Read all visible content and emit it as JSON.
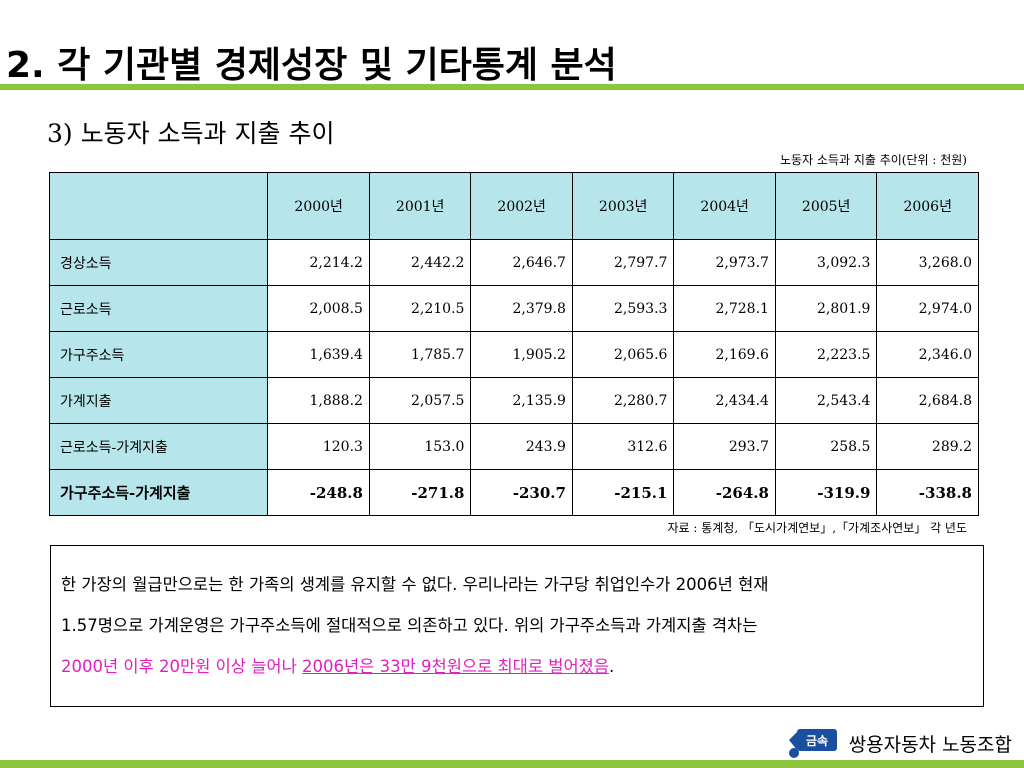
{
  "header": {
    "title": "2. 각 기관별 경제성장 및 기타통계 분석",
    "subtitle": "3) 노동자 소득과 지출 추이",
    "table_caption": "노동자 소득과 지출 추이(단위 : 천원)"
  },
  "table": {
    "columns": [
      "2000년",
      "2001년",
      "2002년",
      "2003년",
      "2004년",
      "2005년",
      "2006년"
    ],
    "rows": [
      {
        "label": "경상소득",
        "values": [
          "2,214.2",
          "2,442.2",
          "2,646.7",
          "2,797.7",
          "2,973.7",
          "3,092.3",
          "3,268.0"
        ]
      },
      {
        "label": "근로소득",
        "values": [
          "2,008.5",
          "2,210.5",
          "2,379.8",
          "2,593.3",
          "2,728.1",
          "2,801.9",
          "2,974.0"
        ]
      },
      {
        "label": "가구주소득",
        "values": [
          "1,639.4",
          "1,785.7",
          "1,905.2",
          "2,065.6",
          "2,169.6",
          "2,223.5",
          "2,346.0"
        ]
      },
      {
        "label": "가계지출",
        "values": [
          "1,888.2",
          "2,057.5",
          "2,135.9",
          "2,280.7",
          "2,434.4",
          "2,543.4",
          "2,684.8"
        ]
      },
      {
        "label": "근로소득-가계지출",
        "values": [
          "120.3",
          "153.0",
          "243.9",
          "312.6",
          "293.7",
          "258.5",
          "289.2"
        ]
      },
      {
        "label": "가구주소득-가계지출",
        "values": [
          "-248.8",
          "-271.8",
          "-230.7",
          "-215.1",
          "-264.8",
          "-319.9",
          "-338.8"
        ]
      }
    ],
    "source": "자료 : 통계청, 「도시가계연보」,「가계조사연보」 각 년도"
  },
  "note": {
    "line1": "한 가장의 월급만으로는 한 가족의 생계를 유지할 수 없다. 우리나라는 가구당 취업인수가 2006년 현재",
    "line2": "1.57명으로 가계운영은 가구주소득에 절대적으로 의존하고 있다. 위의 가구주소득과 가계지출 격차는",
    "line3_highlight": "2000년 이후 20만원 이상 늘어나 ",
    "line3_underlined": "2006년은 33만 9천원으로 최대로 벌어졌음",
    "line3_end": "."
  },
  "footer": {
    "logo_text": "금속",
    "org": "쌍용자동차 노동조합"
  },
  "colors": {
    "accent_bar": "#8cc63f",
    "table_header_bg": "#b6e6ec",
    "highlight": "#e020c0",
    "logo_blue": "#1a4fa0"
  }
}
